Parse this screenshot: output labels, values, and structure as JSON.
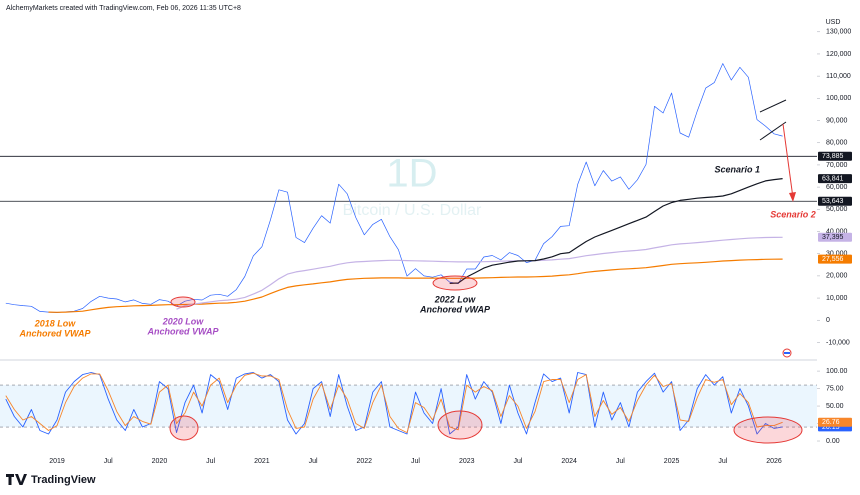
{
  "header": "AlchemyMarkets created with TradingView.com, Feb 06, 2026 11:35 UTC+8",
  "logo": "TradingView",
  "chart_data": {
    "type": "line",
    "watermark": "1D",
    "subtitle": "Bitcoin / U.S. Dollar",
    "y_unit": "USD",
    "grid": false,
    "categories": [
      null,
      null,
      null,
      null,
      null,
      null,
      "2019",
      null,
      null,
      null,
      null,
      null,
      "Jul",
      null,
      null,
      null,
      null,
      null,
      "2020",
      null,
      null,
      null,
      null,
      null,
      "Jul",
      null,
      null,
      null,
      null,
      null,
      "2021",
      null,
      null,
      null,
      null,
      null,
      "Jul",
      null,
      null,
      null,
      null,
      null,
      "2022",
      null,
      null,
      null,
      null,
      null,
      "Jul",
      null,
      null,
      null,
      null,
      null,
      "2023",
      null,
      null,
      null,
      null,
      null,
      "Jul",
      null,
      null,
      null,
      null,
      null,
      "2024",
      null,
      null,
      null,
      null,
      null,
      "Jul",
      null,
      null,
      null,
      null,
      null,
      "2025",
      null,
      null,
      null,
      null,
      null,
      "Jul",
      null,
      null,
      null,
      null,
      null,
      "2026",
      null,
      null,
      null,
      null
    ],
    "ylim": [
      -17000,
      138000
    ],
    "yticks": [
      {
        "value": -10000,
        "label": "-10,000"
      },
      0,
      {
        "value": 10000,
        "label": "10,000"
      },
      {
        "value": 20000,
        "label": "20,000"
      },
      {
        "value": 30000,
        "label": "30,000"
      },
      {
        "value": 40000,
        "label": "40,000"
      },
      {
        "value": 50000,
        "label": "50,000"
      },
      {
        "value": 60000,
        "label": "60,000"
      },
      {
        "value": 70000,
        "label": "70,000"
      },
      {
        "value": 80000,
        "label": "80,000"
      },
      {
        "value": 90000,
        "label": "90,000"
      },
      {
        "value": 100000,
        "label": "100,000"
      },
      {
        "value": 110000,
        "label": "110,000"
      },
      {
        "value": 120000,
        "label": "120,000"
      },
      {
        "value": 130000,
        "label": "130,000"
      }
    ],
    "series": [
      {
        "color": "#2962ff",
        "values": [
          7700,
          7000,
          6600,
          6300,
          4000,
          3700,
          3450,
          3800,
          4100,
          5300,
          8500,
          10800,
          10000,
          9600,
          8300,
          9200,
          7600,
          7200,
          9300,
          8600,
          6400,
          8600,
          9450,
          9150,
          11300,
          11700,
          10800,
          13800,
          19700,
          29000,
          33100,
          45200,
          58800,
          57700,
          37300,
          35000,
          41500,
          47100,
          43800,
          61300,
          57000,
          46300,
          38500,
          43200,
          45500,
          37700,
          31800,
          19900,
          23300,
          20000,
          19400,
          20500,
          17200,
          16500,
          23100,
          23100,
          28500,
          29200,
          27200,
          30500,
          29200,
          26000,
          27000,
          34500,
          37700,
          42300,
          42600,
          61200,
          71300,
          60600,
          67500,
          62700,
          64600,
          59000,
          63300,
          70200,
          96400,
          93400,
          102400,
          84400,
          82500,
          94200,
          104600,
          107100,
          115700,
          108200,
          114000,
          109500,
          90400,
          87500,
          84000,
          83000,
          null,
          null,
          null
        ]
      },
      {
        "color": "#f57c00",
        "end_label": "27,556",
        "values": [
          null,
          null,
          null,
          null,
          null,
          3700,
          3600,
          3700,
          3850,
          4100,
          4700,
          5300,
          5800,
          6100,
          6300,
          6500,
          6600,
          6700,
          6900,
          7000,
          7000,
          7100,
          7200,
          7300,
          7500,
          7700,
          7800,
          8100,
          8600,
          9500,
          10500,
          12000,
          13500,
          14800,
          15500,
          16000,
          16400,
          16900,
          17300,
          17900,
          18400,
          18700,
          18900,
          19000,
          19100,
          19100,
          19100,
          19000,
          19000,
          19000,
          19000,
          19000,
          18900,
          18900,
          18900,
          19000,
          19100,
          19200,
          19300,
          19400,
          19500,
          19500,
          19600,
          19700,
          19900,
          20200,
          20500,
          21000,
          21600,
          22000,
          22400,
          22700,
          23000,
          23200,
          23400,
          23700,
          24200,
          24700,
          25200,
          25500,
          25700,
          25900,
          26100,
          26400,
          26700,
          26900,
          27100,
          27250,
          27350,
          27450,
          27520,
          27556,
          null,
          null,
          null
        ]
      },
      {
        "color": "#c5b3e6",
        "end_label": "37,395",
        "values": [
          null,
          null,
          null,
          null,
          null,
          null,
          null,
          null,
          null,
          null,
          null,
          null,
          null,
          null,
          null,
          null,
          null,
          null,
          null,
          null,
          5000,
          6500,
          7300,
          7800,
          8300,
          8800,
          9100,
          9500,
          10300,
          11800,
          13500,
          16000,
          18700,
          20800,
          21800,
          22400,
          23000,
          23700,
          24300,
          25200,
          25900,
          26300,
          26500,
          26700,
          26900,
          27000,
          27000,
          26900,
          26800,
          26700,
          26600,
          26500,
          26400,
          26300,
          26300,
          26300,
          26400,
          26500,
          26600,
          26700,
          26800,
          26800,
          26900,
          27000,
          27200,
          27500,
          27800,
          28400,
          29100,
          29600,
          30100,
          30500,
          30900,
          31200,
          31500,
          31900,
          32600,
          33300,
          34000,
          34400,
          34700,
          35000,
          35300,
          35700,
          36100,
          36400,
          36700,
          37000,
          37150,
          37280,
          37340,
          37395,
          null,
          null,
          null
        ]
      },
      {
        "color": "#131722",
        "end_label": "63,841",
        "values": [
          null,
          null,
          null,
          null,
          null,
          null,
          null,
          null,
          null,
          null,
          null,
          null,
          null,
          null,
          null,
          null,
          null,
          null,
          null,
          null,
          null,
          null,
          null,
          null,
          null,
          null,
          null,
          null,
          null,
          null,
          null,
          null,
          null,
          null,
          null,
          null,
          null,
          null,
          null,
          null,
          null,
          null,
          null,
          null,
          null,
          null,
          null,
          null,
          null,
          null,
          null,
          null,
          16600,
          16800,
          19500,
          21500,
          23500,
          24800,
          25500,
          26200,
          26700,
          26800,
          26900,
          27600,
          28600,
          30000,
          30500,
          33000,
          35500,
          37500,
          39000,
          40500,
          42000,
          43500,
          45000,
          46500,
          49000,
          51500,
          53000,
          54000,
          54500,
          55000,
          55300,
          55600,
          56000,
          57000,
          58500,
          60000,
          61500,
          62800,
          63400,
          63841,
          null,
          null,
          null
        ]
      }
    ],
    "hlines": [
      {
        "value": 73885,
        "label": "73,885"
      },
      {
        "value": 53643,
        "label": "53,643"
      }
    ],
    "annotations": [
      {
        "text": [
          "Scenario 1"
        ],
        "color": "#131722"
      },
      {
        "text": [
          "Scenario 2"
        ],
        "color": "#e53935"
      },
      {
        "text": [
          "2018 Low",
          "Anchored VWAP"
        ],
        "color": "#f57c00"
      },
      {
        "text": [
          "2020 Low",
          "Anchored VWAP"
        ],
        "color": "#a64dc4"
      },
      {
        "text": [
          "2022 Low",
          "Anchored vWAP"
        ],
        "color": "#131722"
      }
    ],
    "oscillator": {
      "ylim": [
        -20,
        113
      ],
      "yticks": [
        {
          "value": 100,
          "label": "100.00"
        },
        {
          "value": 75,
          "label": "75.00"
        },
        {
          "value": 50,
          "label": "50.00"
        },
        {
          "value": 25,
          "label": "25.00"
        },
        {
          "value": 0,
          "label": "0.00"
        }
      ],
      "band": [
        20,
        80
      ],
      "series": [
        {
          "color": "#2962ff",
          "end_label": "20.15",
          "values": [
            60,
            35,
            20,
            45,
            15,
            10,
            30,
            70,
            85,
            95,
            98,
            95,
            60,
            30,
            15,
            45,
            20,
            25,
            85,
            75,
            12,
            55,
            80,
            40,
            95,
            85,
            45,
            90,
            96,
            98,
            90,
            95,
            85,
            30,
            10,
            25,
            75,
            85,
            35,
            95,
            50,
            15,
            20,
            70,
            85,
            20,
            15,
            10,
            70,
            40,
            25,
            75,
            10,
            20,
            95,
            60,
            85,
            70,
            25,
            80,
            40,
            10,
            55,
            96,
            85,
            90,
            40,
            98,
            95,
            20,
            70,
            30,
            55,
            20,
            70,
            85,
            97,
            70,
            85,
            15,
            30,
            75,
            95,
            80,
            92,
            40,
            75,
            50,
            10,
            25,
            18,
            20.15,
            null,
            null,
            null
          ]
        },
        {
          "color": "#f7862a",
          "end_label": "26.76",
          "values": [
            65,
            45,
            30,
            35,
            25,
            15,
            22,
            55,
            78,
            90,
            96,
            96,
            72,
            42,
            22,
            35,
            28,
            24,
            70,
            80,
            25,
            40,
            70,
            50,
            80,
            90,
            55,
            80,
            94,
            97,
            93,
            93,
            88,
            45,
            18,
            20,
            60,
            82,
            45,
            80,
            60,
            25,
            18,
            55,
            80,
            35,
            18,
            12,
            55,
            48,
            30,
            60,
            20,
            16,
            80,
            70,
            78,
            72,
            35,
            65,
            50,
            18,
            42,
            85,
            88,
            88,
            55,
            88,
            95,
            35,
            58,
            38,
            48,
            28,
            58,
            80,
            94,
            78,
            82,
            30,
            28,
            62,
            88,
            84,
            88,
            52,
            68,
            55,
            20,
            22,
            22,
            26.76,
            null,
            null,
            null
          ]
        }
      ]
    }
  }
}
